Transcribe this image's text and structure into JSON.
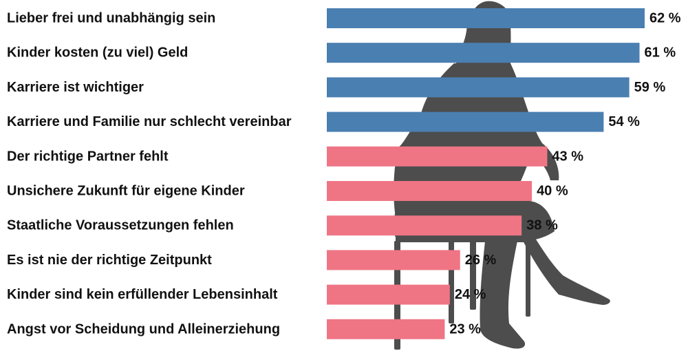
{
  "chart_data": {
    "type": "bar",
    "orientation": "horizontal",
    "categories": [
      "Lieber frei und unabhängig sein",
      "Kinder kosten (zu viel) Geld",
      "Karriere ist wichtiger",
      "Karriere und Familie nur schlecht vereinbar",
      "Der richtige Partner fehlt",
      "Unsichere Zukunft für eigene Kinder",
      "Staatliche Voraussetzungen fehlen",
      "Es ist nie der richtige Zeitpunkt",
      "Kinder sind kein erfüllender Lebensinhalt",
      "Angst vor Scheidung und Alleinerziehung"
    ],
    "values": [
      62,
      61,
      59,
      54,
      43,
      40,
      38,
      26,
      24,
      23
    ],
    "value_labels": [
      "62 %",
      "61 %",
      "59 %",
      "54 %",
      "43 %",
      "40 %",
      "38 %",
      "26 %",
      "24 %",
      "23 %"
    ],
    "bar_colors": [
      "#4a7fb1",
      "#4a7fb1",
      "#4a7fb1",
      "#4a7fb1",
      "#ef7585",
      "#ef7585",
      "#ef7585",
      "#ef7585",
      "#ef7585",
      "#ef7585"
    ],
    "background_icon": "seated-woman-silhouette-icon",
    "silhouette_color": "#4d4d4d",
    "grid": false,
    "legend": false
  }
}
